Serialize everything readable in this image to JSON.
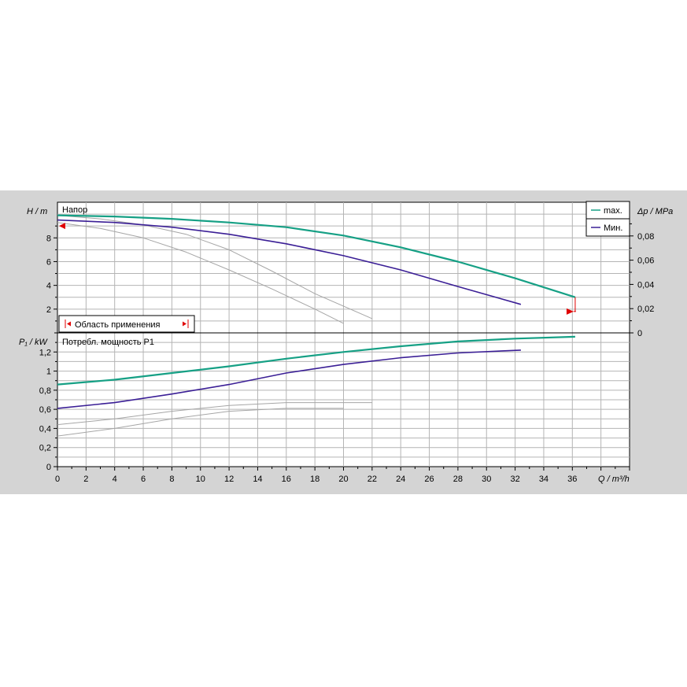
{
  "chart_data": [
    {
      "type": "line",
      "panel": "head",
      "title": "Напор",
      "ylabel": "H / m",
      "y2label": "Δp / MPa",
      "xlim": [
        0,
        40
      ],
      "ylim": [
        0,
        11
      ],
      "yticks": [
        2,
        4,
        6,
        8
      ],
      "y2ticks": [
        "0",
        "0,02",
        "0,04",
        "0,06",
        "0,08"
      ],
      "y2_per_m": 0.0098,
      "grid": true,
      "legend": {
        "position": "top-right",
        "entries": [
          "max.",
          "Мин."
        ]
      },
      "series": [
        {
          "name": "max.",
          "color": "#16a085",
          "width": 2.2,
          "x": [
            0,
            4,
            8,
            12,
            16,
            20,
            24,
            28,
            32,
            36.2
          ],
          "y": [
            9.9,
            9.8,
            9.6,
            9.3,
            8.9,
            8.2,
            7.2,
            6.0,
            4.6,
            3.0
          ]
        },
        {
          "name": "Мин.",
          "color": "#3b1f96",
          "width": 1.6,
          "x": [
            0,
            4,
            8,
            12,
            16,
            20,
            24,
            28,
            32.4
          ],
          "y": [
            9.5,
            9.3,
            8.9,
            8.3,
            7.5,
            6.5,
            5.3,
            3.9,
            2.4
          ]
        },
        {
          "color": "#a6a6a6",
          "width": 1,
          "x": [
            0,
            3,
            6,
            9,
            12,
            15,
            18,
            22
          ],
          "y": [
            9.9,
            9.6,
            9.1,
            8.3,
            7.0,
            5.2,
            3.3,
            1.2
          ]
        },
        {
          "color": "#a6a6a6",
          "width": 1,
          "x": [
            0,
            3,
            6,
            9,
            12,
            15,
            18,
            20
          ],
          "y": [
            9.3,
            8.8,
            8.0,
            6.8,
            5.3,
            3.7,
            2.0,
            0.8
          ]
        }
      ],
      "range_label": "Область применения",
      "markers": {
        "left_y": 9.0,
        "right_x": 36.2,
        "right_y_top": 3.0,
        "right_y_bottom": 1.8
      }
    },
    {
      "type": "line",
      "panel": "power",
      "title": "Потребл. мощность P1",
      "ylabel": "P₁ / kW",
      "xlabel": "Q / m³/h",
      "xlim": [
        0,
        40
      ],
      "ylim": [
        0,
        1.4
      ],
      "xticks": [
        "0",
        "2",
        "4",
        "6",
        "8",
        "10",
        "12",
        "14",
        "16",
        "18",
        "20",
        "22",
        "24",
        "26",
        "28",
        "30",
        "32",
        "34",
        "36"
      ],
      "yticks": [
        "0",
        "0,2",
        "0,4",
        "0,6",
        "0,8",
        "1",
        "1,2"
      ],
      "grid": true,
      "series": [
        {
          "name": "max.",
          "color": "#16a085",
          "width": 2.2,
          "x": [
            0,
            4,
            8,
            12,
            16,
            20,
            24,
            28,
            32,
            36.2
          ],
          "y": [
            0.86,
            0.91,
            0.98,
            1.05,
            1.13,
            1.2,
            1.26,
            1.31,
            1.34,
            1.36
          ]
        },
        {
          "name": "Мин.",
          "color": "#3b1f96",
          "width": 1.6,
          "x": [
            0,
            4,
            8,
            12,
            16,
            20,
            24,
            28,
            32.4
          ],
          "y": [
            0.61,
            0.67,
            0.76,
            0.86,
            0.98,
            1.07,
            1.14,
            1.19,
            1.22
          ]
        },
        {
          "color": "#a6a6a6",
          "width": 1,
          "x": [
            0,
            4,
            8,
            12,
            16,
            22
          ],
          "y": [
            0.44,
            0.5,
            0.58,
            0.64,
            0.67,
            0.67
          ]
        },
        {
          "color": "#a6a6a6",
          "width": 1,
          "x": [
            0,
            4,
            8,
            12,
            16,
            20
          ],
          "y": [
            0.32,
            0.4,
            0.5,
            0.58,
            0.61,
            0.61
          ]
        }
      ]
    }
  ]
}
